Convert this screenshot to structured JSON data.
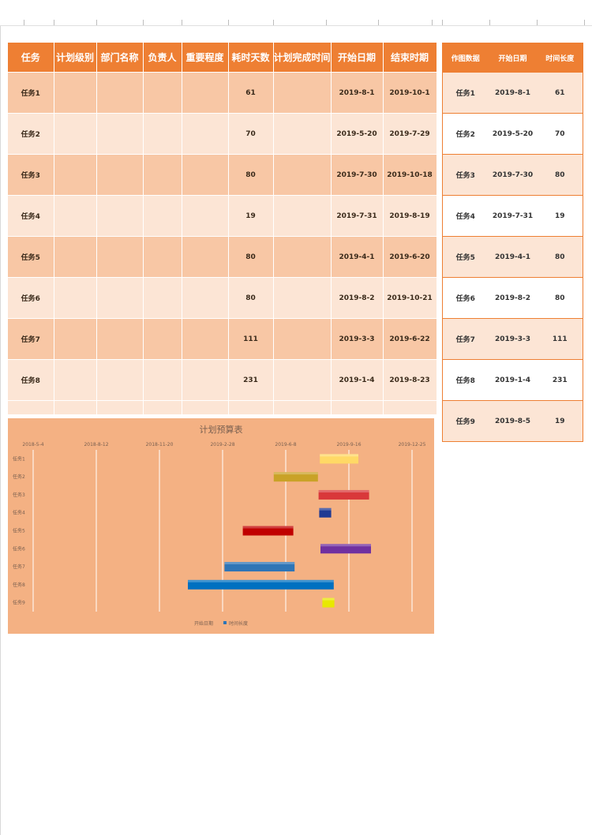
{
  "main_table": {
    "headers": [
      "任务",
      "计划级别",
      "部门名称",
      "负责人",
      "重要程度",
      "耗时天数",
      "计划完成时间",
      "开始日期",
      "结束时期"
    ],
    "rows": [
      {
        "task": "任务1",
        "days": "61",
        "start": "2019-8-1",
        "end": "2019-10-1"
      },
      {
        "task": "任务2",
        "days": "70",
        "start": "2019-5-20",
        "end": "2019-7-29"
      },
      {
        "task": "任务3",
        "days": "80",
        "start": "2019-7-30",
        "end": "2019-10-18"
      },
      {
        "task": "任务4",
        "days": "19",
        "start": "2019-7-31",
        "end": "2019-8-19"
      },
      {
        "task": "任务5",
        "days": "80",
        "start": "2019-4-1",
        "end": "2019-6-20"
      },
      {
        "task": "任务6",
        "days": "80",
        "start": "2019-8-2",
        "end": "2019-10-21"
      },
      {
        "task": "任务7",
        "days": "111",
        "start": "2019-3-3",
        "end": "2019-6-22"
      },
      {
        "task": "任务8",
        "days": "231",
        "start": "2019-1-4",
        "end": "2019-8-23"
      }
    ]
  },
  "side_table": {
    "headers": [
      "作图数据",
      "开始日期",
      "时间长度"
    ],
    "rows": [
      {
        "task": "任务1",
        "start": "2019-8-1",
        "length": "61"
      },
      {
        "task": "任务2",
        "start": "2019-5-20",
        "length": "70"
      },
      {
        "task": "任务3",
        "start": "2019-7-30",
        "length": "80"
      },
      {
        "task": "任务4",
        "start": "2019-7-31",
        "length": "19"
      },
      {
        "task": "任务5",
        "start": "2019-4-1",
        "length": "80"
      },
      {
        "task": "任务6",
        "start": "2019-8-2",
        "length": "80"
      },
      {
        "task": "任务7",
        "start": "2019-3-3",
        "length": "111"
      },
      {
        "task": "任务8",
        "start": "2019-1-4",
        "length": "231"
      },
      {
        "task": "任务9",
        "start": "2019-8-5",
        "length": "19"
      }
    ]
  },
  "chart_data": {
    "type": "bar",
    "title": "计划预算表",
    "orientation": "horizontal-gantt",
    "categories": [
      "任务1",
      "任务2",
      "任务3",
      "任务4",
      "任务5",
      "任务6",
      "任务7",
      "任务8",
      "任务9"
    ],
    "x_tick_labels": [
      "2018-5-4",
      "2018-8-12",
      "2018-11-20",
      "2019-2-28",
      "2019-6-8",
      "2019-9-16",
      "2019-12-25"
    ],
    "xlim": [
      "2018-5-4",
      "2019-12-25"
    ],
    "series": [
      {
        "name": "开始日期",
        "values": [
          "2019-8-1",
          "2019-5-20",
          "2019-7-30",
          "2019-7-31",
          "2019-4-1",
          "2019-8-2",
          "2019-3-3",
          "2019-1-4",
          "2019-8-5"
        ]
      },
      {
        "name": "时间长度",
        "values": [
          61,
          70,
          80,
          19,
          80,
          80,
          111,
          231,
          19
        ]
      }
    ],
    "bar_colors": [
      "#ffd966",
      "#c9a227",
      "#d9383a",
      "#1f3a93",
      "#c00000",
      "#7030a0",
      "#2e75b6",
      "#0070c0",
      "#e8e800"
    ],
    "legend": [
      "开始日期",
      "时间长度"
    ],
    "legend_position": "bottom",
    "grid": true
  }
}
